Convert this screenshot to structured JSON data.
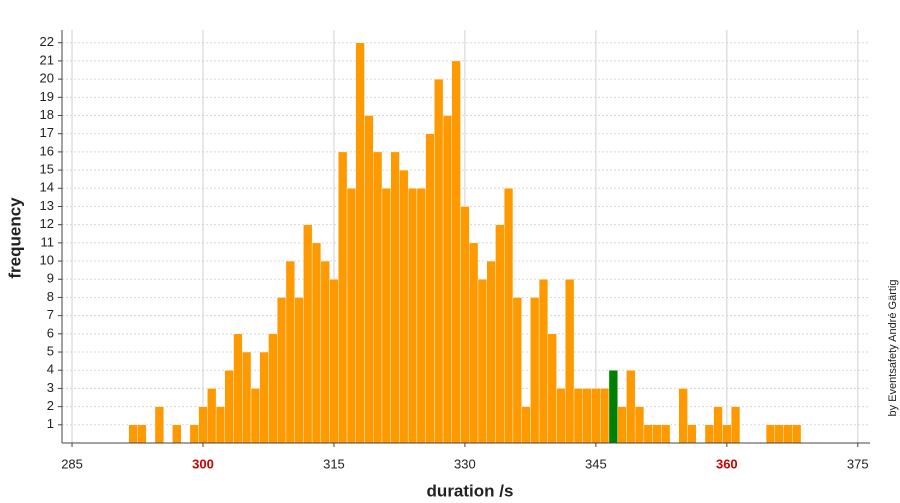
{
  "chart_data": {
    "type": "histogram",
    "x_label": "duration /s",
    "y_label": "frequency",
    "credit": "by Eventsafety André Gärtig",
    "bins": [
      291.5,
      292.5,
      293.5,
      294.5,
      295.5,
      296.5,
      297.5,
      298.5,
      299.5,
      300.5,
      301.5,
      302.5,
      303.5,
      304.5,
      305.5,
      306.5,
      307.5,
      308.5,
      309.5,
      310.5,
      311.5,
      312.5,
      313.5,
      314.5,
      315.5,
      316.5,
      317.5,
      318.5,
      319.5,
      320.5,
      321.5,
      322.5,
      323.5,
      324.5,
      325.5,
      326.5,
      327.5,
      328.5,
      329.5,
      330.5,
      331.5,
      332.5,
      333.5,
      334.5,
      335.5,
      336.5,
      337.5,
      338.5,
      339.5,
      340.5,
      341.5,
      342.5,
      343.5,
      344.5,
      345.5,
      346.5,
      347.5,
      348.5,
      349.5,
      350.5,
      351.5,
      352.5,
      353.5,
      354.5,
      355.5,
      356.5,
      357.5,
      358.5,
      359.5,
      360.5,
      361.5,
      362.5,
      363.5,
      364.5,
      365.5,
      366.5,
      367.5,
      368.5
    ],
    "values": [
      1,
      1,
      0,
      2,
      0,
      1,
      0,
      1,
      2,
      3,
      2,
      4,
      6,
      5,
      3,
      5,
      6,
      8,
      10,
      8,
      12,
      11,
      10,
      9,
      16,
      14,
      22,
      18,
      16,
      14,
      16,
      15,
      14,
      14,
      17,
      20,
      18,
      21,
      13,
      11,
      9,
      10,
      12,
      14,
      8,
      2,
      8,
      9,
      6,
      3,
      9,
      3,
      3,
      3,
      3,
      4,
      2,
      4,
      2,
      1,
      1,
      1,
      0,
      3,
      1,
      0,
      1,
      2,
      1,
      2,
      0,
      0,
      0,
      1,
      1,
      1,
      1
    ],
    "color": "#ff9900",
    "highlight_color": "#008000",
    "colors": [
      "#ff9900",
      "#ff9900",
      "#ff9900",
      "#ff9900",
      "#ff9900",
      "#ff9900",
      "#ff9900",
      "#ff9900",
      "#ff9900",
      "#ff9900",
      "#ff9900",
      "#ff9900",
      "#ff9900",
      "#ff9900",
      "#ff9900",
      "#ff9900",
      "#ff9900",
      "#ff9900",
      "#ff9900",
      "#ff9900",
      "#ff9900",
      "#ff9900",
      "#ff9900",
      "#ff9900",
      "#ff9900",
      "#ff9900",
      "#ff9900",
      "#ff9900",
      "#ff9900",
      "#ff9900",
      "#ff9900",
      "#ff9900",
      "#ff9900",
      "#ff9900",
      "#ff9900",
      "#ff9900",
      "#ff9900",
      "#ff9900",
      "#ff9900",
      "#ff9900",
      "#ff9900",
      "#ff9900",
      "#ff9900",
      "#ff9900",
      "#ff9900",
      "#ff9900",
      "#ff9900",
      "#ff9900",
      "#ff9900",
      "#ff9900",
      "#ff9900",
      "#ff9900",
      "#ff9900",
      "#ff9900",
      "#ff9900",
      "#008000",
      "#ff9900",
      "#ff9900",
      "#ff9900",
      "#ff9900",
      "#ff9900",
      "#ff9900",
      "#ff9900",
      "#ff9900",
      "#ff9900",
      "#ff9900",
      "#ff9900",
      "#ff9900",
      "#ff9900",
      "#ff9900",
      "#ff9900",
      "#ff9900",
      "#ff9900",
      "#ff9900",
      "#ff9900",
      "#ff9900",
      "#ff9900"
    ],
    "xlim": [
      283.85,
      376.4
    ],
    "ylim": [
      0,
      22.7
    ],
    "xticks": [
      285,
      300,
      315,
      330,
      345,
      360,
      375
    ],
    "xtick_colors": [
      "#222222",
      "#cc0000",
      "#222222",
      "#222222",
      "#222222",
      "#cc0000",
      "#222222"
    ],
    "yticks": [
      1,
      2,
      3,
      4,
      5,
      6,
      7,
      8,
      9,
      10,
      11,
      12,
      13,
      14,
      15,
      16,
      17,
      18,
      19,
      20,
      21,
      22
    ],
    "grid": true
  }
}
